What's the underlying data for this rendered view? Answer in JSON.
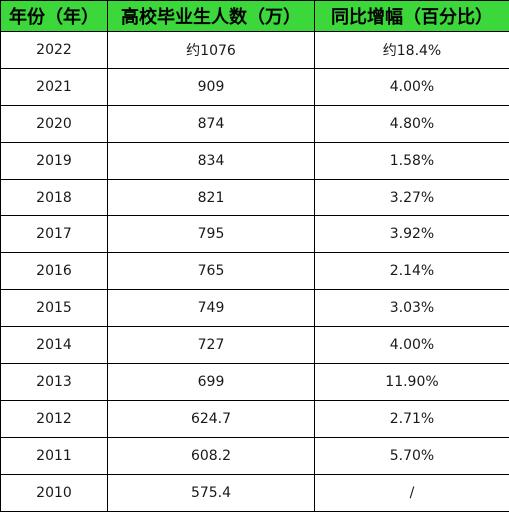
{
  "table": {
    "headers": [
      "年份（年）",
      "高校毕业生人数（万）",
      "同比增幅（百分比）"
    ],
    "rows": [
      [
        "2022",
        "约1076",
        "约18.4%"
      ],
      [
        "2021",
        "909",
        "4.00%"
      ],
      [
        "2020",
        "874",
        "4.80%"
      ],
      [
        "2019",
        "834",
        "1.58%"
      ],
      [
        "2018",
        "821",
        "3.27%"
      ],
      [
        "2017",
        "795",
        "3.92%"
      ],
      [
        "2016",
        "765",
        "2.14%"
      ],
      [
        "2015",
        "749",
        "3.03%"
      ],
      [
        "2014",
        "727",
        "4.00%"
      ],
      [
        "2013",
        "699",
        "11.90%"
      ],
      [
        "2012",
        "624.7",
        "2.71%"
      ],
      [
        "2011",
        "608.2",
        "5.70%"
      ],
      [
        "2010",
        "575.4",
        "/"
      ]
    ]
  },
  "colors": {
    "header_background": "#3bd73b",
    "border": "#000000",
    "text": "#1a1a1a"
  }
}
